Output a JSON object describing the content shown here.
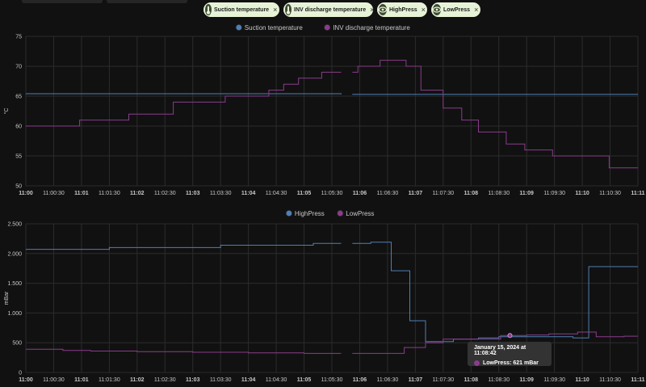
{
  "filters": {
    "chips": [
      {
        "label": "Suction temperature",
        "icon": "thermometer-icon",
        "close": "×"
      },
      {
        "label": "INV discharge temperature",
        "icon": "thermometer-icon",
        "close": "×"
      },
      {
        "label": "HighPress",
        "icon": "eye-icon",
        "close": "×"
      },
      {
        "label": "LowPress",
        "icon": "eye-icon",
        "close": "×"
      }
    ]
  },
  "colors": {
    "suction": "#4e7fb5",
    "inv": "#8a3c8c",
    "highpress": "#4e7fb5",
    "lowpress": "#8a3c8c",
    "grid": "#2c2c2c",
    "background": "#111111"
  },
  "chart_data": [
    {
      "type": "line",
      "title": "",
      "xlabel": "",
      "ylabel": "°C",
      "ylim": [
        50,
        75
      ],
      "yticks": [
        50,
        55,
        60,
        65,
        70,
        75
      ],
      "xlim": [
        "11:00",
        "11:11"
      ],
      "xticks": [
        "11:00",
        "11:00:30",
        "11:01",
        "11:01:30",
        "11:02",
        "11:02:30",
        "11:03",
        "11:03:30",
        "11:04",
        "11:04:30",
        "11:05",
        "11:05:30",
        "11:06",
        "11:06:30",
        "11:07",
        "11:07:30",
        "11:08",
        "11:08:30",
        "11:09",
        "11:09:30",
        "11:10",
        "11:10:30",
        "11:11"
      ],
      "legend_position": "top-center",
      "step": true,
      "series": [
        {
          "name": "Suction temperature",
          "color": "#4e7fb5",
          "segments": [
            [
              [
                "11:00:00",
                65.4
              ],
              [
                "11:05:40",
                65.3
              ]
            ],
            [
              [
                "11:05:52",
                65.3
              ],
              [
                "11:11:00",
                65.3
              ]
            ]
          ]
        },
        {
          "name": "INV discharge temperature",
          "color": "#8a3c8c",
          "segments": [
            [
              [
                "11:00:00",
                60
              ],
              [
                "11:00:58",
                61
              ],
              [
                "11:01:51",
                62
              ],
              [
                "11:02:39",
                64
              ],
              [
                "11:03:35",
                65
              ],
              [
                "11:04:22",
                66
              ],
              [
                "11:04:38",
                67
              ],
              [
                "11:04:54",
                68
              ],
              [
                "11:05:19",
                69
              ],
              [
                "11:05:40",
                69
              ]
            ],
            [
              [
                "11:05:52",
                69
              ],
              [
                "11:05:58",
                70
              ],
              [
                "11:06:22",
                71
              ],
              [
                "11:06:50",
                70
              ],
              [
                "11:07:06",
                66
              ],
              [
                "11:07:30",
                63
              ],
              [
                "11:07:50",
                61
              ],
              [
                "11:08:08",
                59
              ],
              [
                "11:08:38",
                57
              ],
              [
                "11:08:58",
                56
              ],
              [
                "11:09:28",
                55
              ],
              [
                "11:10:29",
                53
              ],
              [
                "11:11:00",
                53
              ]
            ]
          ]
        }
      ]
    },
    {
      "type": "line",
      "title": "",
      "xlabel": "",
      "ylabel": "mBar",
      "ylim": [
        0,
        2500
      ],
      "yticks": [
        0,
        500,
        1000,
        1500,
        2000,
        2500
      ],
      "ytick_labels": [
        "0",
        "500",
        "1.000",
        "1.500",
        "2.000",
        "2.500"
      ],
      "xlim": [
        "11:00",
        "11:11"
      ],
      "xticks": [
        "11:00",
        "11:00:30",
        "11:01",
        "11:01:30",
        "11:02",
        "11:02:30",
        "11:03",
        "11:03:30",
        "11:04",
        "11:04:30",
        "11:05",
        "11:05:30",
        "11:06",
        "11:06:30",
        "11:07",
        "11:07:30",
        "11:08",
        "11:08:30",
        "11:09",
        "11:09:30",
        "11:10",
        "11:10:30",
        "11:11"
      ],
      "legend_position": "top-center",
      "step": true,
      "series": [
        {
          "name": "HighPress",
          "color": "#4e7fb5",
          "segments": [
            [
              [
                "11:00:00",
                2070
              ],
              [
                "11:01:30",
                2100
              ],
              [
                "11:03:30",
                2140
              ],
              [
                "11:05:10",
                2170
              ],
              [
                "11:05:40",
                2170
              ]
            ],
            [
              [
                "11:05:52",
                2170
              ],
              [
                "11:06:12",
                2190
              ],
              [
                "11:06:34",
                1710
              ],
              [
                "11:06:54",
                870
              ],
              [
                "11:07:11",
                520
              ],
              [
                "11:07:41",
                560
              ],
              [
                "11:08:08",
                580
              ],
              [
                "11:08:30",
                600
              ],
              [
                "11:09:50",
                580
              ],
              [
                "11:10:07",
                1780
              ],
              [
                "11:11:00",
                1780
              ]
            ]
          ]
        },
        {
          "name": "LowPress",
          "color": "#8a3c8c",
          "segments": [
            [
              [
                "11:00:00",
                390
              ],
              [
                "11:00:40",
                370
              ],
              [
                "11:01:10",
                360
              ],
              [
                "11:02:00",
                350
              ],
              [
                "11:03:00",
                340
              ],
              [
                "11:04:00",
                330
              ],
              [
                "11:05:00",
                320
              ],
              [
                "11:05:40",
                320
              ]
            ],
            [
              [
                "11:05:52",
                320
              ],
              [
                "11:06:48",
                420
              ],
              [
                "11:07:11",
                500
              ],
              [
                "11:07:30",
                560
              ],
              [
                "11:08:32",
                621
              ],
              [
                "11:09:00",
                630
              ],
              [
                "11:09:24",
                650
              ],
              [
                "11:09:55",
                680
              ],
              [
                "11:10:15",
                600
              ],
              [
                "11:10:45",
                610
              ],
              [
                "11:11:00",
                610
              ]
            ]
          ]
        }
      ],
      "tooltip": {
        "title": "January 15, 2024 at 11:08:42",
        "series": "LowPress",
        "text": "LowPress: 621 mBar",
        "x": "11:08:42",
        "y": 621
      }
    }
  ]
}
